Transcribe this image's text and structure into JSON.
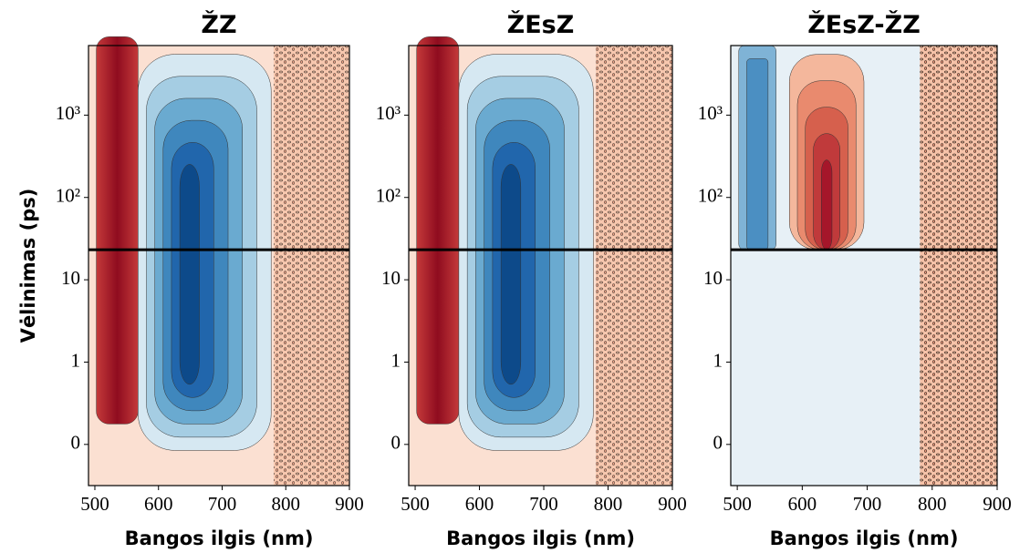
{
  "chart_data": [
    {
      "type": "heatmap",
      "title": "ŽZ",
      "xlabel": "Bangos ilgis (nm)",
      "ylabel": "Vėlinimas (ps)",
      "xlim": [
        490,
        900
      ],
      "xticks": [
        500,
        600,
        700,
        800,
        900
      ],
      "yscale": "symlog",
      "ylim": [
        -0.5,
        7000
      ],
      "yticks": [
        0,
        1,
        10,
        {
          "value": 100,
          "label": "10²"
        },
        {
          "value": 1000,
          "label": "10³"
        }
      ]
    },
    {
      "type": "heatmap",
      "title": "ŽEsZ",
      "xlabel": "Bangos ilgis (nm)",
      "xlim": [
        490,
        900
      ],
      "xticks": [
        500,
        600,
        700,
        800,
        900
      ],
      "yscale": "symlog",
      "ylim": [
        -0.5,
        7000
      ],
      "yticks": [
        0,
        1,
        10,
        {
          "value": 100,
          "label": "10²"
        },
        {
          "value": 1000,
          "label": "10³"
        }
      ]
    },
    {
      "type": "heatmap",
      "title": "ŽEsZ-ŽZ",
      "xlabel": "Bangos ilgis (nm)",
      "xlim": [
        490,
        900
      ],
      "xticks": [
        500,
        600,
        700,
        800,
        900
      ],
      "yscale": "symlog",
      "ylim": [
        -0.5,
        7000
      ],
      "yticks": [
        0,
        1,
        10,
        {
          "value": 100,
          "label": "10²"
        },
        {
          "value": 1000,
          "label": "10³"
        }
      ]
    }
  ]
}
